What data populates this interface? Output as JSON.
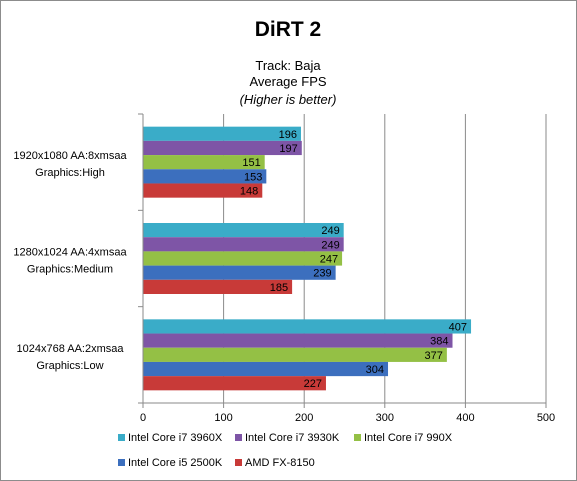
{
  "chart_data": {
    "type": "bar",
    "orientation": "horizontal",
    "title": "DiRT 2",
    "subtitle_lines": [
      "Track: Baja",
      "Average FPS",
      "(Higher is better)"
    ],
    "categories": [
      [
        "1920x1080 AA:8xmsaa",
        "Graphics:High"
      ],
      [
        "1280x1024 AA:4xmsaa",
        "Graphics:Medium"
      ],
      [
        "1024x768 AA:2xmsaa",
        "Graphics:Low"
      ]
    ],
    "series": [
      {
        "name": "Intel Core i7 3960X",
        "color": "#3aacc8",
        "values": [
          196,
          249,
          407
        ]
      },
      {
        "name": "Intel Core i7 3930K",
        "color": "#7e55a6",
        "values": [
          197,
          249,
          384
        ]
      },
      {
        "name": "Intel Core i7 990X",
        "color": "#94c045",
        "values": [
          151,
          247,
          377
        ]
      },
      {
        "name": "Intel Core i5 2500K",
        "color": "#3c6fbe",
        "values": [
          153,
          239,
          304
        ]
      },
      {
        "name": "AMD FX-8150",
        "color": "#c83a38",
        "values": [
          148,
          185,
          227
        ]
      }
    ],
    "xlim": [
      0,
      500
    ],
    "xticks": [
      0,
      100,
      200,
      300,
      400,
      500
    ],
    "grid": true,
    "legend_position": "bottom"
  }
}
